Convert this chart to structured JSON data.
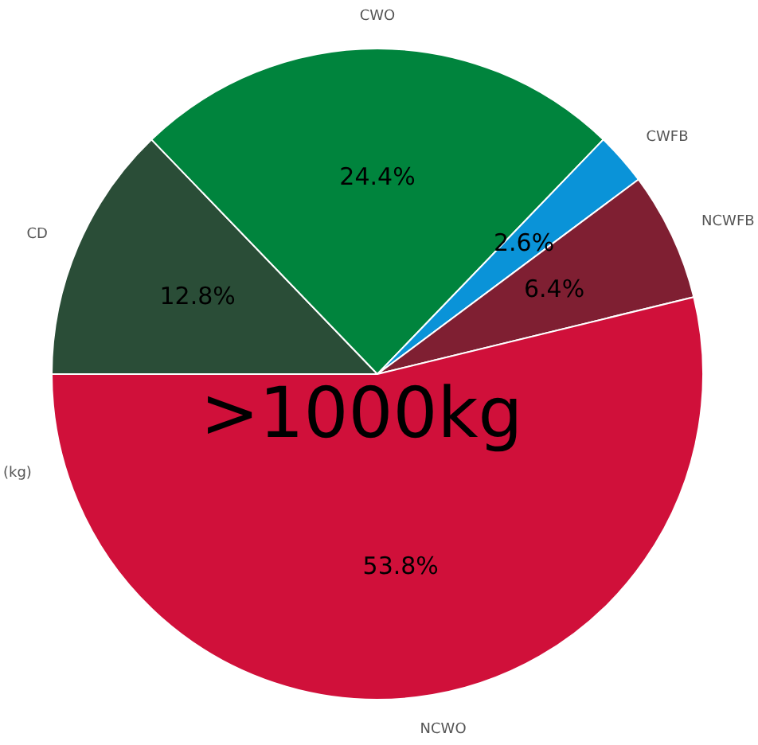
{
  "chart_data": {
    "type": "pie",
    "title": ">1000kg",
    "ylabel": "(kg)",
    "categories": [
      "CD",
      "CWO",
      "CWFB",
      "NCWFB",
      "NCWO"
    ],
    "values": [
      12.8,
      24.4,
      2.6,
      6.4,
      53.8
    ],
    "value_labels": [
      "12.8%",
      "24.4%",
      "2.6%",
      "6.4%",
      "53.8%"
    ],
    "colors": [
      "#2a4d37",
      "#00843d",
      "#0a93d8",
      "#7f1f32",
      "#d0103a"
    ],
    "legend": false
  }
}
